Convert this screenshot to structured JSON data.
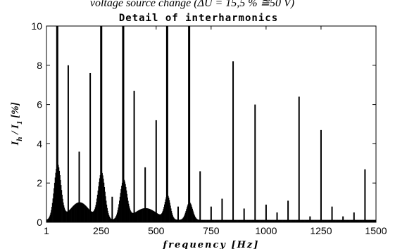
{
  "chart_data": {
    "type": "bar",
    "title": "Detail of interharmonics",
    "subtitle": "voltage source change (ΔU = 15,5 % ≅50 V)",
    "xlabel": "frequency [Hz]",
    "ylabel": {
      "main": "I",
      "sub1": "h",
      "mid": " / I",
      "sub2": "1",
      "tail": " [%]"
    },
    "xlim": [
      1,
      1500
    ],
    "ylim": [
      0,
      10
    ],
    "xticks": [
      {
        "value": 1,
        "label": "1"
      },
      {
        "value": 250,
        "label": "250"
      },
      {
        "value": 500,
        "label": "500"
      },
      {
        "value": 750,
        "label": "750"
      },
      {
        "value": 1000,
        "label": "1000"
      },
      {
        "value": 1250,
        "label": "1250"
      },
      {
        "value": 1500,
        "label": "1500"
      }
    ],
    "yticks": [
      {
        "value": 0,
        "label": "0"
      },
      {
        "value": 2,
        "label": "2"
      },
      {
        "value": 4,
        "label": "4"
      },
      {
        "value": 6,
        "label": "6"
      },
      {
        "value": 8,
        "label": "8"
      },
      {
        "value": 10,
        "label": "10"
      }
    ],
    "spikes": [
      {
        "x": 50,
        "y": 10
      },
      {
        "x": 100,
        "y": 8.0
      },
      {
        "x": 150,
        "y": 3.6
      },
      {
        "x": 200,
        "y": 7.6
      },
      {
        "x": 250,
        "y": 10
      },
      {
        "x": 300,
        "y": 1.3
      },
      {
        "x": 350,
        "y": 10
      },
      {
        "x": 400,
        "y": 6.7
      },
      {
        "x": 450,
        "y": 2.8
      },
      {
        "x": 500,
        "y": 5.2
      },
      {
        "x": 550,
        "y": 10
      },
      {
        "x": 600,
        "y": 0.8
      },
      {
        "x": 650,
        "y": 10
      },
      {
        "x": 700,
        "y": 2.6
      },
      {
        "x": 750,
        "y": 0.8
      },
      {
        "x": 800,
        "y": 1.2
      },
      {
        "x": 850,
        "y": 8.2
      },
      {
        "x": 900,
        "y": 0.7
      },
      {
        "x": 950,
        "y": 6.0
      },
      {
        "x": 1000,
        "y": 0.9
      },
      {
        "x": 1050,
        "y": 0.5
      },
      {
        "x": 1100,
        "y": 1.1
      },
      {
        "x": 1150,
        "y": 6.4
      },
      {
        "x": 1200,
        "y": 0.3
      },
      {
        "x": 1250,
        "y": 4.7
      },
      {
        "x": 1300,
        "y": 0.8
      },
      {
        "x": 1350,
        "y": 0.3
      },
      {
        "x": 1400,
        "y": 0.5
      },
      {
        "x": 1450,
        "y": 2.7
      }
    ],
    "bumps": [
      {
        "center": 50,
        "height": 2.8,
        "width": 22
      },
      {
        "center": 250,
        "height": 2.4,
        "width": 22
      },
      {
        "center": 350,
        "height": 2.0,
        "width": 22
      },
      {
        "center": 550,
        "height": 1.2,
        "width": 18
      },
      {
        "center": 650,
        "height": 0.9,
        "width": 20
      },
      {
        "center": 150,
        "height": 0.9,
        "width": 60
      },
      {
        "center": 450,
        "height": 0.6,
        "width": 70
      }
    ],
    "baseline": 0.12,
    "color": "#000000",
    "grid": false
  }
}
